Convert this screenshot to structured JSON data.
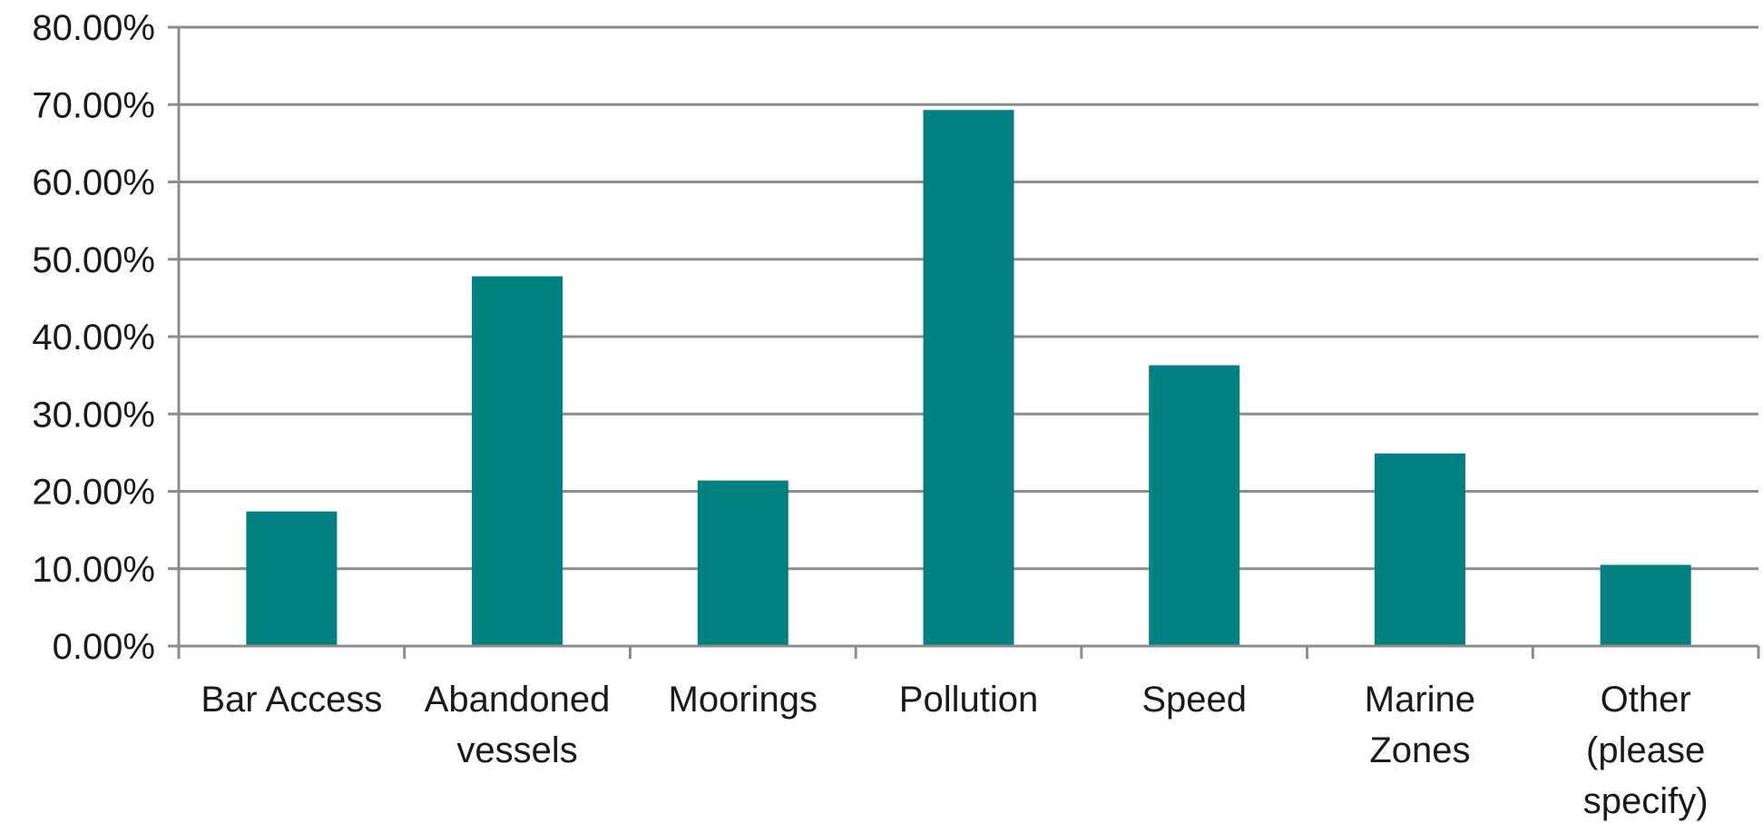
{
  "chart_data": {
    "type": "bar",
    "title": "",
    "xlabel": "",
    "ylabel": "",
    "categories": [
      [
        "Bar Access"
      ],
      [
        "Abandoned",
        "vessels"
      ],
      [
        "Moorings"
      ],
      [
        "Pollution"
      ],
      [
        "Speed"
      ],
      [
        "Marine",
        "Zones"
      ],
      [
        "Other",
        "(please",
        "specify)"
      ]
    ],
    "values": [
      0.174,
      0.478,
      0.214,
      0.693,
      0.363,
      0.249,
      0.105
    ],
    "ylim": [
      0,
      0.8
    ],
    "y_ticks": [
      0,
      0.1,
      0.2,
      0.3,
      0.4,
      0.5,
      0.6,
      0.7,
      0.8
    ],
    "y_tick_labels": [
      "0.00%",
      "10.00%",
      "20.00%",
      "30.00%",
      "40.00%",
      "50.00%",
      "60.00%",
      "70.00%",
      "80.00%"
    ],
    "grid": true,
    "legend": "none",
    "colors": {
      "bar": "#008080",
      "grid": "#8c8c8c",
      "axis": "#8c8c8c"
    }
  }
}
